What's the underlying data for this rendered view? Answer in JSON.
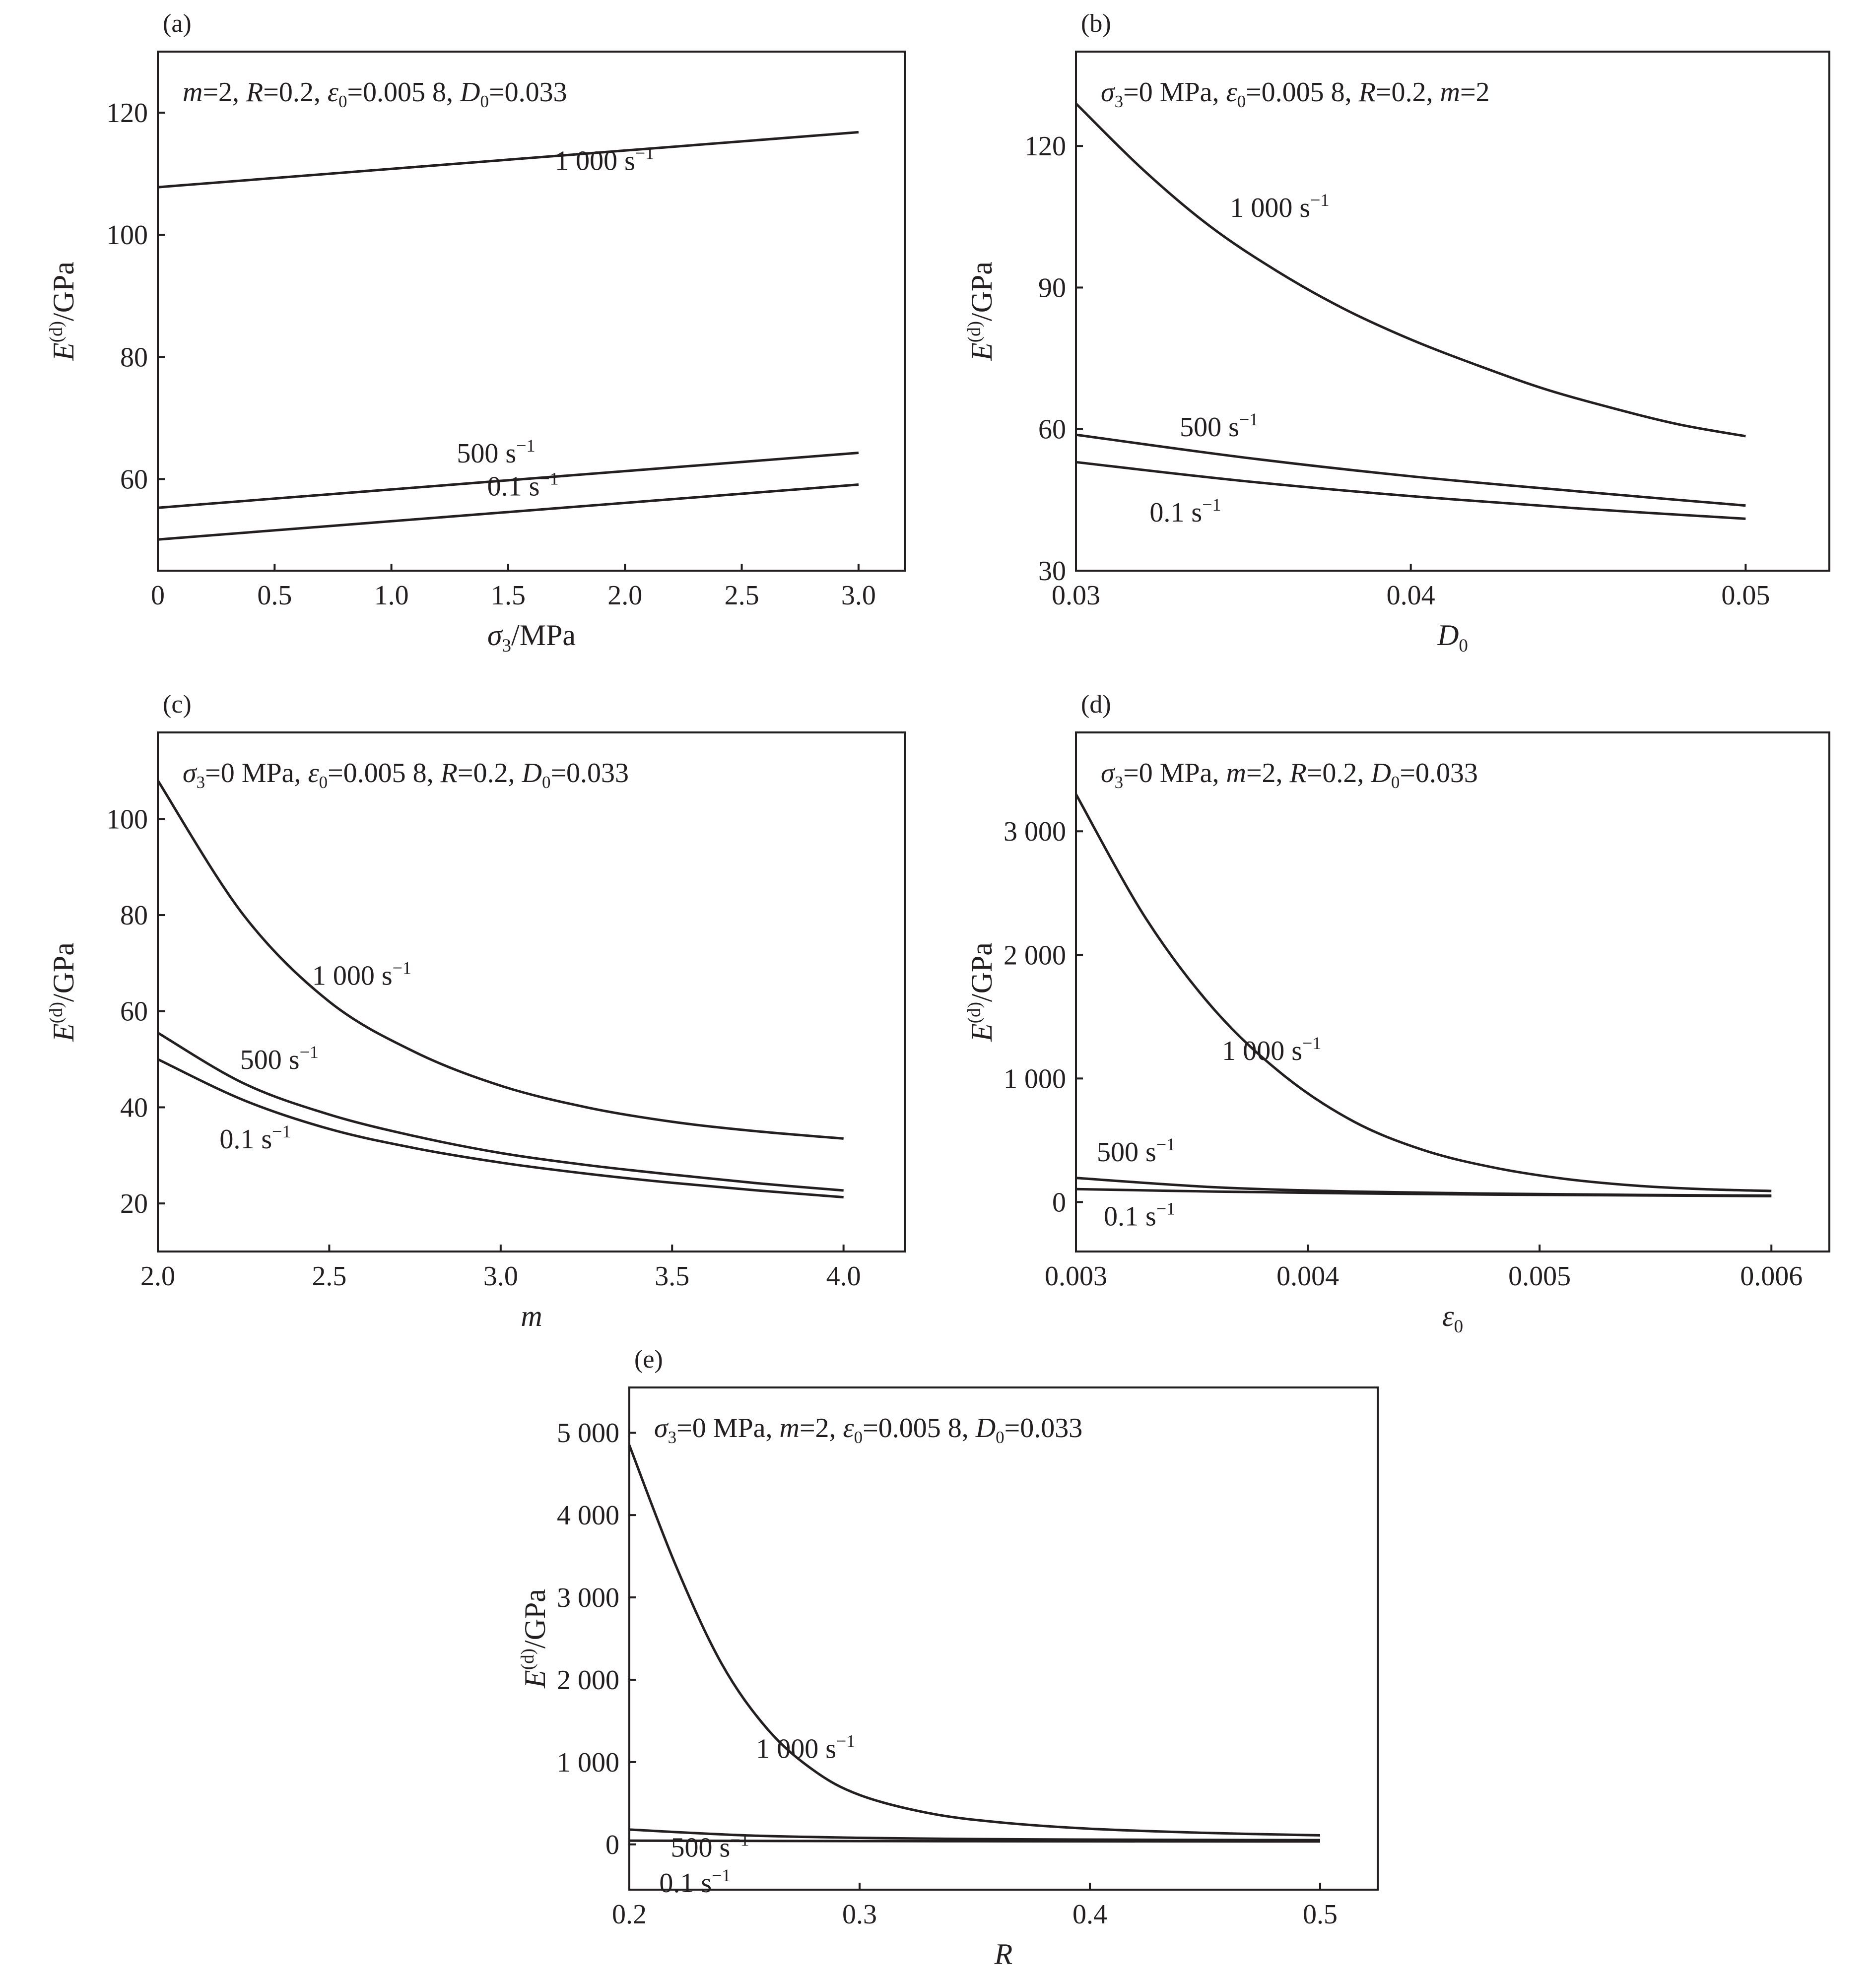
{
  "figure": {
    "background": "#ffffff",
    "ink": "#231f20"
  },
  "chart_data": [
    {
      "id": "a",
      "panel_label": "(a)",
      "type": "line",
      "annotation": [
        {
          "t": "m",
          "s": "i"
        },
        {
          "t": "=2, "
        },
        {
          "t": "R",
          "s": "i"
        },
        {
          "t": "=0.2, "
        },
        {
          "t": "ε",
          "s": "i"
        },
        {
          "t": "0",
          "s": "sub"
        },
        {
          "t": "=0.005 8, "
        },
        {
          "t": "D",
          "s": "i"
        },
        {
          "t": "0",
          "s": "sub"
        },
        {
          "t": "=0.033"
        }
      ],
      "xlabel": [
        {
          "t": "σ",
          "s": "i"
        },
        {
          "t": "3",
          "s": "sub"
        },
        {
          "t": "/MPa"
        }
      ],
      "ylabel": [
        {
          "t": "E",
          "s": "i"
        },
        {
          "t": "(d)",
          "s": "sup"
        },
        {
          "t": "/GPa"
        }
      ],
      "xlim": [
        0,
        3.2
      ],
      "ylim": [
        45,
        130
      ],
      "xticks": [
        0,
        0.5,
        1.0,
        1.5,
        2.0,
        2.5,
        3.0
      ],
      "xtick_labels": [
        "0",
        "0.5",
        "1.0",
        "1.5",
        "2.0",
        "2.5",
        "3.0"
      ],
      "yticks": [
        60,
        80,
        100,
        120
      ],
      "ytick_labels": [
        "60",
        "80",
        "100",
        "120"
      ],
      "grid": false,
      "legend": "none (curves labelled inline)",
      "series": [
        {
          "name": "1 000 s",
          "sup": "−1",
          "x": [
            0,
            3
          ],
          "y": [
            107.8,
            116.8
          ]
        },
        {
          "name": "500 s",
          "sup": "−1",
          "x": [
            0,
            3
          ],
          "y": [
            55.3,
            64.3
          ]
        },
        {
          "name": "0.1 s",
          "sup": "−1",
          "x": [
            0,
            3
          ],
          "y": [
            50.1,
            59.1
          ]
        }
      ],
      "label_pos": [
        [
          1.7,
          110.6
        ],
        [
          1.28,
          62.7
        ],
        [
          1.41,
          57.3
        ]
      ]
    },
    {
      "id": "b",
      "panel_label": "(b)",
      "type": "line",
      "annotation": [
        {
          "t": "σ",
          "s": "i"
        },
        {
          "t": "3",
          "s": "sub"
        },
        {
          "t": "=0 MPa, "
        },
        {
          "t": "ε",
          "s": "i"
        },
        {
          "t": "0",
          "s": "sub"
        },
        {
          "t": "=0.005 8, "
        },
        {
          "t": "R",
          "s": "i"
        },
        {
          "t": "=0.2, "
        },
        {
          "t": "m",
          "s": "i"
        },
        {
          "t": "=2"
        }
      ],
      "xlabel": [
        {
          "t": "D",
          "s": "i"
        },
        {
          "t": "0",
          "s": "sub"
        }
      ],
      "ylabel": [
        {
          "t": "E",
          "s": "i"
        },
        {
          "t": "(d)",
          "s": "sup"
        },
        {
          "t": "/GPa"
        }
      ],
      "xlim": [
        0.03,
        0.0525
      ],
      "ylim": [
        30,
        140
      ],
      "xticks": [
        0.03,
        0.04,
        0.05
      ],
      "xtick_labels": [
        "0.03",
        "0.04",
        "0.05"
      ],
      "yticks": [
        30,
        60,
        90,
        120
      ],
      "ytick_labels": [
        "30",
        "60",
        "90",
        "120"
      ],
      "grid": false,
      "legend": "none (curves labelled inline)",
      "series": [
        {
          "name": "1 000 s",
          "sup": "−1",
          "x": [
            0.03,
            0.032,
            0.034,
            0.036,
            0.038,
            0.04,
            0.042,
            0.044,
            0.046,
            0.048,
            0.05
          ],
          "y": [
            129,
            115,
            103,
            93.5,
            85.5,
            79,
            73.5,
            68.5,
            64.5,
            61,
            58.5
          ]
        },
        {
          "name": "500 s",
          "sup": "−1",
          "x": [
            0.03,
            0.035,
            0.04,
            0.045,
            0.05
          ],
          "y": [
            58.8,
            54,
            50,
            46.8,
            43.8
          ]
        },
        {
          "name": "0.1 s",
          "sup": "−1",
          "x": [
            0.03,
            0.035,
            0.04,
            0.045,
            0.05
          ],
          "y": [
            53,
            49,
            45.8,
            43.2,
            41
          ]
        }
      ],
      "label_pos": [
        [
          0.0346,
          105
        ],
        [
          0.0331,
          58.5
        ],
        [
          0.0322,
          40.4
        ]
      ]
    },
    {
      "id": "c",
      "panel_label": "(c)",
      "type": "line",
      "annotation": [
        {
          "t": "σ",
          "s": "i"
        },
        {
          "t": "3",
          "s": "sub"
        },
        {
          "t": "=0 MPa, "
        },
        {
          "t": "ε",
          "s": "i"
        },
        {
          "t": "0",
          "s": "sub"
        },
        {
          "t": "=0.005 8, "
        },
        {
          "t": "R",
          "s": "i"
        },
        {
          "t": "=0.2, "
        },
        {
          "t": "D",
          "s": "i"
        },
        {
          "t": "0",
          "s": "sub"
        },
        {
          "t": "=0.033"
        }
      ],
      "xlabel": [
        {
          "t": "m",
          "s": "i"
        }
      ],
      "ylabel": [
        {
          "t": "E",
          "s": "i"
        },
        {
          "t": "(d)",
          "s": "sup"
        },
        {
          "t": "/GPa"
        }
      ],
      "xlim": [
        2.0,
        4.18
      ],
      "ylim": [
        10,
        118
      ],
      "xticks": [
        2.0,
        2.5,
        3.0,
        3.5,
        4.0
      ],
      "xtick_labels": [
        "2.0",
        "2.5",
        "3.0",
        "3.5",
        "4.0"
      ],
      "yticks": [
        20,
        40,
        60,
        80,
        100
      ],
      "ytick_labels": [
        "20",
        "40",
        "60",
        "80",
        "100"
      ],
      "grid": false,
      "legend": "none (curves labelled inline)",
      "series": [
        {
          "name": "1 000 s",
          "sup": "−1",
          "x": [
            2.0,
            2.25,
            2.5,
            2.75,
            3.0,
            3.25,
            3.5,
            3.75,
            4.0
          ],
          "y": [
            108,
            80,
            62,
            51.5,
            44.5,
            40,
            37,
            35,
            33.5
          ]
        },
        {
          "name": "500 s",
          "sup": "−1",
          "x": [
            2.0,
            2.25,
            2.5,
            2.75,
            3.0,
            3.25,
            3.5,
            3.75,
            4.0
          ],
          "y": [
            55.5,
            45,
            38.5,
            34,
            30.5,
            28,
            26,
            24.2,
            22.7
          ]
        },
        {
          "name": "0.1 s",
          "sup": "−1",
          "x": [
            2.0,
            2.25,
            2.5,
            2.75,
            3.0,
            3.25,
            3.5,
            3.75,
            4.0
          ],
          "y": [
            50,
            41.5,
            35.5,
            31.5,
            28.5,
            26.2,
            24.3,
            22.7,
            21.3
          ]
        }
      ],
      "label_pos": [
        [
          2.45,
          65.5
        ],
        [
          2.24,
          48
        ],
        [
          2.18,
          31.5
        ]
      ]
    },
    {
      "id": "d",
      "panel_label": "(d)",
      "type": "line",
      "annotation": [
        {
          "t": "σ",
          "s": "i"
        },
        {
          "t": "3",
          "s": "sub"
        },
        {
          "t": "=0 MPa, "
        },
        {
          "t": "m",
          "s": "i"
        },
        {
          "t": "=2, "
        },
        {
          "t": "R",
          "s": "i"
        },
        {
          "t": "=0.2, "
        },
        {
          "t": "D",
          "s": "i"
        },
        {
          "t": "0",
          "s": "sub"
        },
        {
          "t": "=0.033"
        }
      ],
      "xlabel": [
        {
          "t": "ε",
          "s": "i"
        },
        {
          "t": "0",
          "s": "sub"
        }
      ],
      "ylabel": [
        {
          "t": "E",
          "s": "i"
        },
        {
          "t": "(d)",
          "s": "sup"
        },
        {
          "t": "/GPa"
        }
      ],
      "xlim": [
        0.003,
        0.00625
      ],
      "ylim": [
        -400,
        3800
      ],
      "xticks": [
        0.003,
        0.004,
        0.005,
        0.006
      ],
      "xtick_labels": [
        "0.003",
        "0.004",
        "0.005",
        "0.006"
      ],
      "yticks": [
        0,
        1000,
        2000,
        3000
      ],
      "ytick_labels": [
        "0",
        "1 000",
        "2 000",
        "3 000"
      ],
      "grid": false,
      "legend": "none (curves labelled inline)",
      "series": [
        {
          "name": "1 000 s",
          "sup": "−1",
          "x": [
            0.003,
            0.0033,
            0.0036,
            0.0039,
            0.0042,
            0.0045,
            0.0048,
            0.0051,
            0.0054,
            0.0057,
            0.006
          ],
          "y": [
            3300,
            2300,
            1550,
            1020,
            650,
            420,
            280,
            190,
            135,
            105,
            90
          ]
        },
        {
          "name": "500 s",
          "sup": "−1",
          "x": [
            0.003,
            0.0036,
            0.0042,
            0.0048,
            0.0054,
            0.006
          ],
          "y": [
            195,
            120,
            85,
            68,
            58,
            52
          ]
        },
        {
          "name": "0.1 s",
          "sup": "−1",
          "x": [
            0.003,
            0.0036,
            0.0042,
            0.0048,
            0.0054,
            0.006
          ],
          "y": [
            105,
            85,
            70,
            60,
            54,
            48
          ]
        }
      ],
      "label_pos": [
        [
          0.00363,
          1150
        ],
        [
          0.00309,
          330
        ],
        [
          0.00312,
          -190
        ]
      ]
    },
    {
      "id": "e",
      "panel_label": "(e)",
      "type": "line",
      "annotation": [
        {
          "t": "σ",
          "s": "i"
        },
        {
          "t": "3",
          "s": "sub"
        },
        {
          "t": "=0 MPa, "
        },
        {
          "t": "m",
          "s": "i"
        },
        {
          "t": "=2, "
        },
        {
          "t": "ε",
          "s": "i"
        },
        {
          "t": "0",
          "s": "sub"
        },
        {
          "t": "=0.005 8, "
        },
        {
          "t": "D",
          "s": "i"
        },
        {
          "t": "0",
          "s": "sub"
        },
        {
          "t": "=0.033"
        }
      ],
      "xlabel": [
        {
          "t": "R",
          "s": "i"
        }
      ],
      "ylabel": [
        {
          "t": "E",
          "s": "i"
        },
        {
          "t": "(d)",
          "s": "sup"
        },
        {
          "t": "/GPa"
        }
      ],
      "xlim": [
        0.2,
        0.525
      ],
      "ylim": [
        -550,
        5550
      ],
      "xticks": [
        0.2,
        0.3,
        0.4,
        0.5
      ],
      "xtick_labels": [
        "0.2",
        "0.3",
        "0.4",
        "0.5"
      ],
      "yticks": [
        0,
        1000,
        2000,
        3000,
        4000,
        5000
      ],
      "ytick_labels": [
        "0",
        "1 000",
        "2 000",
        "3 000",
        "4 000",
        "5 000"
      ],
      "grid": false,
      "legend": "none (curves labelled inline)",
      "series": [
        {
          "name": "1 000 s",
          "sup": "−1",
          "x": [
            0.2,
            0.22,
            0.24,
            0.26,
            0.28,
            0.3,
            0.33,
            0.36,
            0.4,
            0.45,
            0.5
          ],
          "y": [
            4850,
            3400,
            2200,
            1400,
            900,
            600,
            380,
            270,
            190,
            140,
            110
          ]
        },
        {
          "name": "500 s",
          "sup": "−1",
          "x": [
            0.2,
            0.25,
            0.3,
            0.35,
            0.4,
            0.45,
            0.5
          ],
          "y": [
            180,
            110,
            80,
            65,
            58,
            54,
            52
          ]
        },
        {
          "name": "0.1 s",
          "sup": "−1",
          "x": [
            0.2,
            0.3,
            0.4,
            0.5
          ],
          "y": [
            45,
            40,
            37,
            35
          ]
        }
      ],
      "label_pos": [
        [
          0.255,
          1050
        ],
        [
          0.218,
          -150
        ],
        [
          0.213,
          -580
        ]
      ]
    }
  ]
}
